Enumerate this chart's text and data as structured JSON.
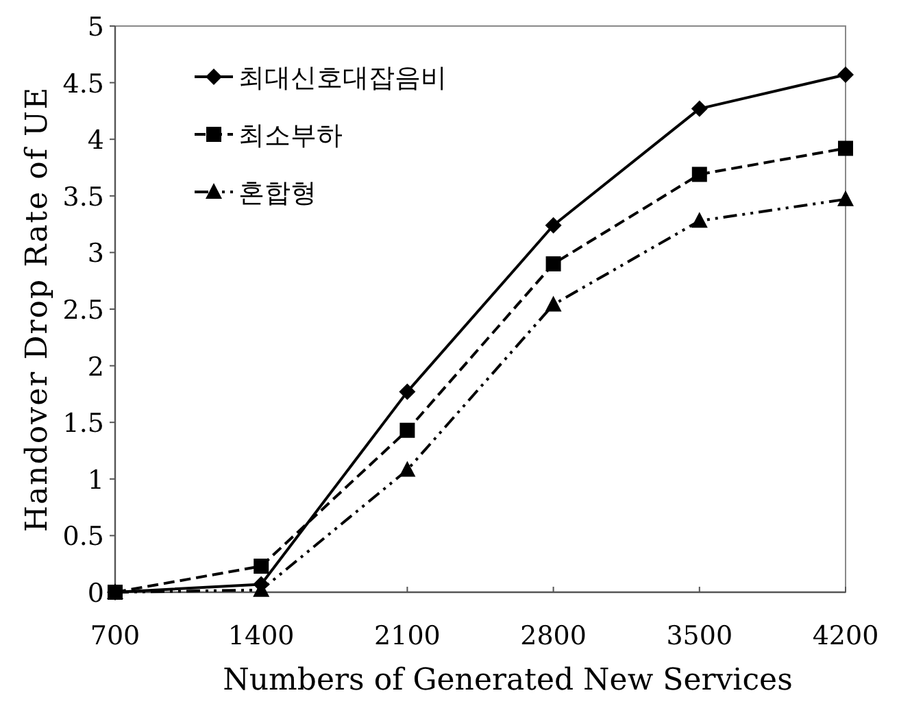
{
  "chart_data": {
    "type": "line",
    "xlabel": "Numbers of Generated New Services",
    "ylabel": "Handover Drop Rate of UE",
    "x": [
      700,
      1400,
      2100,
      2800,
      3500,
      4200
    ],
    "xlim": [
      700,
      4200
    ],
    "xticks": [
      700,
      1400,
      2100,
      2800,
      3500,
      4200
    ],
    "ylim": [
      0,
      5
    ],
    "yticks": [
      0,
      0.5,
      1,
      1.5,
      2,
      2.5,
      3,
      3.5,
      4,
      4.5,
      5
    ],
    "grid": false,
    "legend": "top left",
    "series": [
      {
        "name": "최대신호대잡음비",
        "color": "#000000",
        "marker": "diamond",
        "line_style": "solid",
        "values": [
          0,
          0.07,
          1.77,
          3.24,
          4.27,
          4.57
        ]
      },
      {
        "name": "최소부하",
        "color": "#000000",
        "marker": "square",
        "line_style": "dashed",
        "values": [
          0,
          0.23,
          1.43,
          2.9,
          3.69,
          3.92
        ]
      },
      {
        "name": "혼합형",
        "color": "#000000",
        "marker": "triangle",
        "line_style": "dotted",
        "values": [
          0,
          0.02,
          1.08,
          2.54,
          3.28,
          3.47
        ]
      }
    ]
  }
}
